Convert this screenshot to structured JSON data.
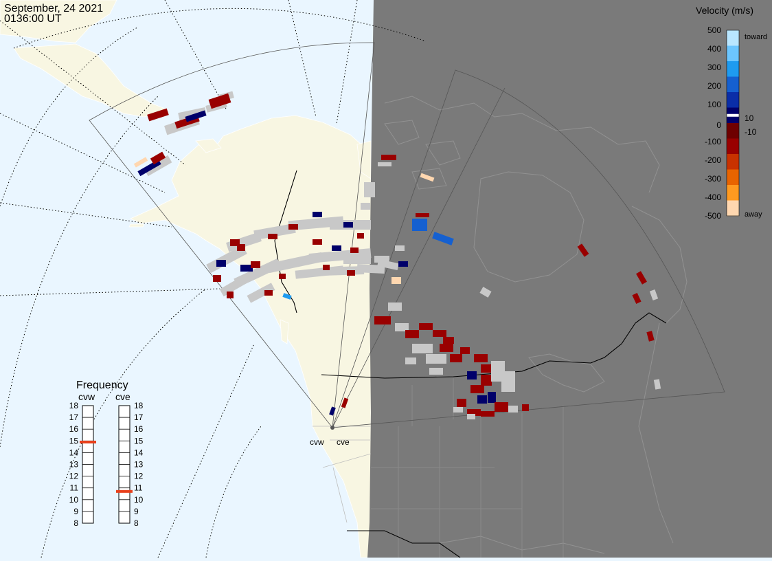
{
  "header": {
    "date": "September, 24 2021",
    "time": "0136:00 UT"
  },
  "colors": {
    "ocean": "#eaf6ff",
    "land": "#f8f6e2",
    "night": "#7a7a7a",
    "ground_scatter": "#c8c8c8",
    "coastline_night": "#929292",
    "border": "#000000"
  },
  "velocity_scale": {
    "title": "Velocity (m/s)",
    "tick_labels": [
      "500",
      "400",
      "300",
      "200",
      "100",
      "10",
      "0",
      "-10",
      "-100",
      "-200",
      "-300",
      "-400",
      "-500"
    ],
    "toward_label": "toward",
    "away_label": "away",
    "stops": [
      {
        "v": 500,
        "color": "#b9e6ff"
      },
      {
        "v": 400,
        "color": "#6cc6ff"
      },
      {
        "v": 300,
        "color": "#1e9bf0"
      },
      {
        "v": 200,
        "color": "#1560d0"
      },
      {
        "v": 100,
        "color": "#0a2ea8"
      },
      {
        "v": 10,
        "color": "#00006a"
      },
      {
        "v": -10,
        "color": "#6e0000"
      },
      {
        "v": -100,
        "color": "#990000"
      },
      {
        "v": -200,
        "color": "#c83200"
      },
      {
        "v": -300,
        "color": "#e86400"
      },
      {
        "v": -400,
        "color": "#ff9a20"
      },
      {
        "v": -500,
        "color": "#ffd7b0"
      }
    ]
  },
  "frequency_panel": {
    "title": "Frequency",
    "radars": [
      {
        "name": "cvw",
        "frequency_mhz": 14.9
      },
      {
        "name": "cve",
        "frequency_mhz": 10.7
      }
    ],
    "tick_labels": [
      "18",
      "17",
      "16",
      "15",
      "14",
      "13",
      "12",
      "11",
      "10",
      "9",
      "8"
    ],
    "min": 8,
    "max": 18,
    "marker_color": "#e8401c"
  },
  "radar_labels": {
    "west": "cvw",
    "east": "cve"
  }
}
